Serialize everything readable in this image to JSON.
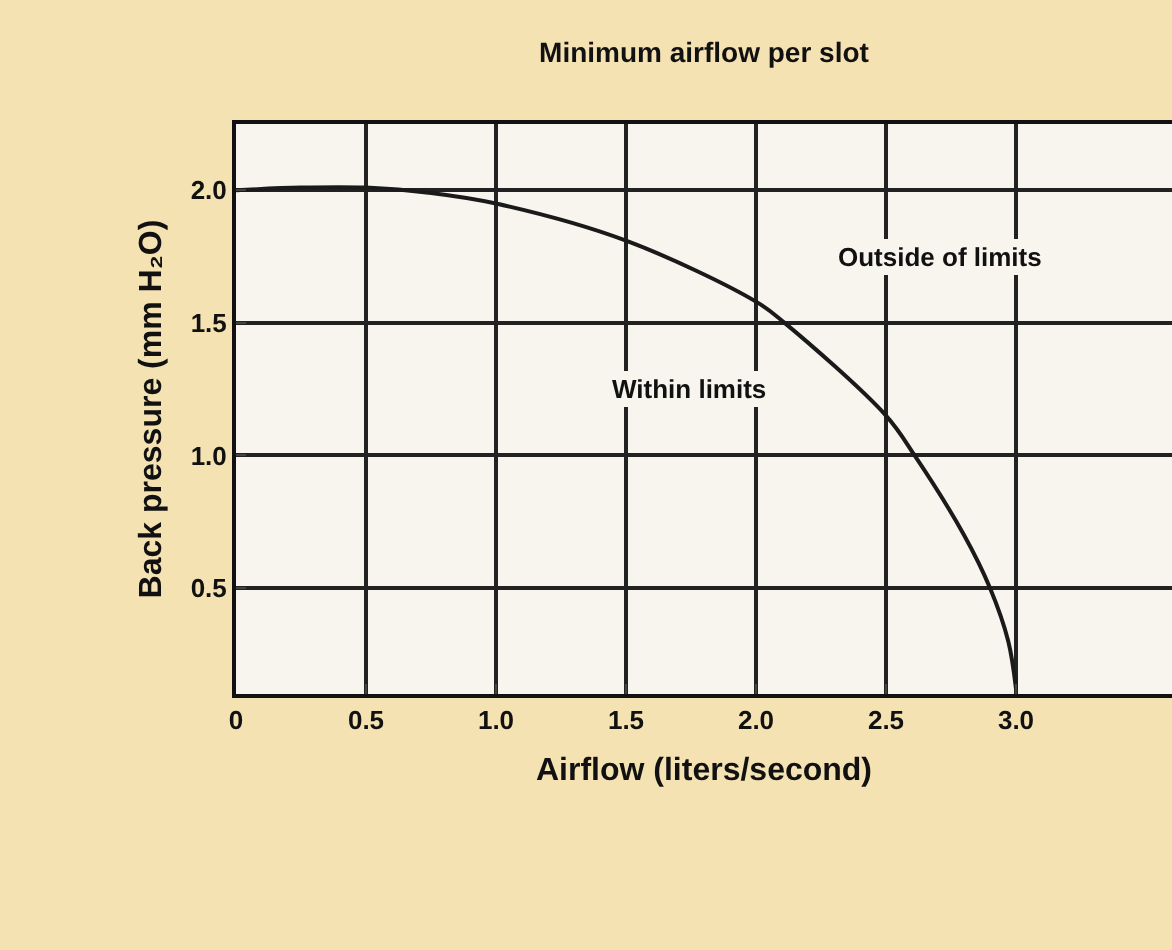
{
  "chart_data": {
    "type": "line",
    "title": "Minimum airflow per slot",
    "xlabel": "Airflow (liters/second)",
    "ylabel": "Back pressure (mm H₂O)",
    "x": [
      0,
      0.25,
      0.5,
      0.75,
      1.0,
      1.5,
      2.0,
      2.11,
      2.5,
      2.61,
      2.8,
      2.9,
      2.97,
      3.0
    ],
    "series": [
      {
        "color": "#1a1a1a",
        "values": [
          2.0,
          2.01,
          2.01,
          1.99,
          1.95,
          1.81,
          1.58,
          1.5,
          1.15,
          1.0,
          0.7,
          0.5,
          0.3,
          0.12
        ]
      }
    ],
    "xlim": [
      0,
      3.6
    ],
    "xticks": [
      0,
      0.5,
      {
        "value": 1.0,
        "label": "1.0"
      },
      1.5,
      {
        "value": 2.0,
        "label": "2.0"
      },
      2.5,
      {
        "value": 3.0,
        "label": "3.0"
      }
    ],
    "ylim": [
      0.1,
      2.25
    ],
    "yticks": [
      0.5,
      {
        "value": 1.0,
        "label": "1.0"
      },
      1.5,
      {
        "value": 2.0,
        "label": "2.0"
      }
    ],
    "annotations": [
      "Within limits",
      "Outside of limits"
    ],
    "grid": true,
    "marker": "none",
    "line_style": "solid"
  }
}
